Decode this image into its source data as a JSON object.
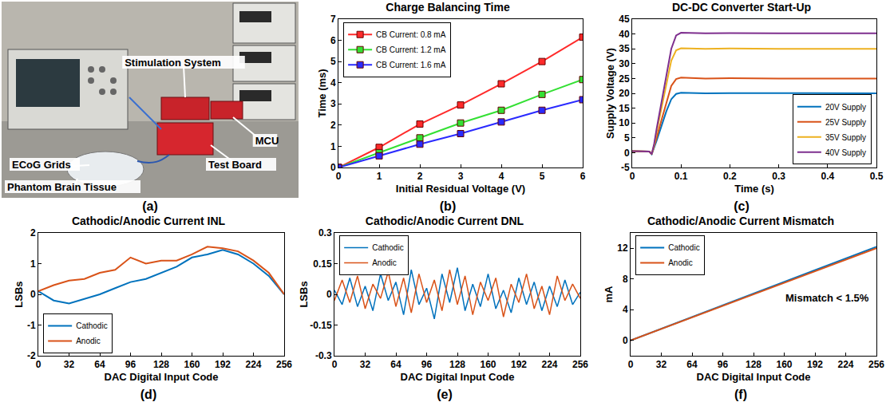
{
  "photo": {
    "label": "(a)",
    "annotations": [
      {
        "text": "Stimulation System"
      },
      {
        "text": "MCU"
      },
      {
        "text": "Test Board"
      },
      {
        "text": "ECoG Grids"
      },
      {
        "text": "Phantom Brain Tissue"
      }
    ]
  },
  "chart_data": [
    {
      "type": "line",
      "label": "(b)",
      "title": "Charge Balancing Time",
      "x_label": "Initial Residual Voltage (V)",
      "y_label": "Time (ms)",
      "x": [
        0,
        1,
        2,
        3,
        4,
        5,
        6
      ],
      "series": [
        {
          "name": "CB Current: 0.8 mA",
          "color": "#ff2a2a",
          "marker": "square",
          "values": [
            0,
            0.95,
            2.05,
            2.95,
            3.95,
            5.0,
            6.15
          ]
        },
        {
          "name": "CB Current: 1.2 mA",
          "color": "#33e033",
          "marker": "square",
          "values": [
            0,
            0.7,
            1.4,
            2.1,
            2.7,
            3.45,
            4.15
          ]
        },
        {
          "name": "CB Current: 1.6 mA",
          "color": "#2a2aff",
          "marker": "square",
          "values": [
            0,
            0.55,
            1.1,
            1.6,
            2.15,
            2.7,
            3.2
          ]
        }
      ],
      "xlim": [
        0,
        6
      ],
      "xticks": [
        0,
        1,
        2,
        3,
        4,
        5,
        6
      ],
      "ylim": [
        0,
        7
      ],
      "yticks": [
        0,
        1,
        2,
        3,
        4,
        5,
        6,
        7
      ],
      "grid": false,
      "legend": "upper left"
    },
    {
      "type": "line",
      "label": "(c)",
      "title": "DC-DC Converter Start-Up",
      "x_label": "Time (s)",
      "y_label": "Supply Voltage (V)",
      "x": [
        0,
        0.02,
        0.035,
        0.04,
        0.045,
        0.05,
        0.06,
        0.07,
        0.08,
        0.09,
        0.1,
        0.15,
        0.2,
        0.3,
        0.4,
        0.5
      ],
      "series": [
        {
          "name": "20V Supply",
          "color": "#0072bd",
          "values": [
            0.5,
            0.5,
            0.4,
            -0.5,
            1.5,
            4,
            9,
            14,
            18,
            19.8,
            20.2,
            20,
            20.1,
            20,
            20,
            20
          ]
        },
        {
          "name": "25V Supply",
          "color": "#d95319",
          "values": [
            0.5,
            0.5,
            0.4,
            -0.5,
            2,
            5,
            11,
            17,
            22.5,
            24.8,
            25.3,
            25,
            25.1,
            25,
            25,
            25
          ]
        },
        {
          "name": "35V Supply",
          "color": "#edb120",
          "values": [
            0.5,
            0.5,
            0.4,
            -0.5,
            2.5,
            7,
            15,
            24,
            31,
            34.5,
            35.2,
            35,
            35.1,
            35,
            35,
            35
          ]
        },
        {
          "name": "40V Supply",
          "color": "#7e2f8e",
          "values": [
            0.5,
            0.5,
            0.4,
            -0.5,
            3,
            8,
            17,
            27,
            35,
            39.5,
            40.4,
            40.2,
            40.3,
            40.2,
            40.2,
            40.2
          ]
        }
      ],
      "xlim": [
        0,
        0.5
      ],
      "xticks": [
        0,
        0.1,
        0.2,
        0.3,
        0.4,
        0.5
      ],
      "ylim": [
        -5,
        45
      ],
      "yticks": [
        -5,
        0,
        5,
        10,
        15,
        20,
        25,
        30,
        35,
        40,
        45
      ],
      "grid": false,
      "legend": "lower right"
    },
    {
      "type": "line",
      "label": "(d)",
      "title": "Cathodic/Anodic Current INL",
      "x_label": "DAC Digital Input Code",
      "y_label": "LSBs",
      "x": [
        0,
        16,
        32,
        48,
        64,
        80,
        96,
        112,
        128,
        144,
        160,
        176,
        192,
        208,
        224,
        240,
        256
      ],
      "series": [
        {
          "name": "Cathodic",
          "color": "#0072bd",
          "values": [
            0.1,
            -0.2,
            -0.3,
            -0.15,
            0,
            0.2,
            0.4,
            0.5,
            0.7,
            0.9,
            1.2,
            1.3,
            1.45,
            1.3,
            1.0,
            0.6,
            0.0
          ]
        },
        {
          "name": "Anodic",
          "color": "#d95319",
          "values": [
            0.1,
            0.3,
            0.45,
            0.5,
            0.7,
            0.8,
            1.2,
            1.0,
            1.1,
            1.1,
            1.3,
            1.55,
            1.5,
            1.4,
            1.1,
            0.7,
            0.0
          ]
        }
      ],
      "xlim": [
        0,
        256
      ],
      "xticks": [
        0,
        32,
        64,
        96,
        128,
        160,
        192,
        224,
        256
      ],
      "ylim": [
        -2,
        2
      ],
      "yticks": [
        -2,
        -1,
        0,
        1,
        2
      ],
      "grid": false,
      "legend": "lower left"
    },
    {
      "type": "line",
      "label": "(e)",
      "title": "Cathodic/Anodic Current DNL",
      "x_label": "DAC Digital Input Code",
      "y_label": "LSBs",
      "x": [
        0,
        8,
        16,
        24,
        32,
        40,
        48,
        56,
        64,
        72,
        80,
        88,
        96,
        104,
        112,
        120,
        128,
        136,
        144,
        152,
        160,
        168,
        176,
        184,
        192,
        200,
        208,
        216,
        224,
        232,
        240,
        248,
        256
      ],
      "series": [
        {
          "name": "Cathodic",
          "color": "#0072bd",
          "values": [
            0.02,
            -0.05,
            0.08,
            -0.06,
            0.04,
            -0.08,
            0.1,
            -0.03,
            0.06,
            -0.1,
            0.12,
            -0.05,
            0.03,
            -0.12,
            0.1,
            -0.04,
            0.13,
            -0.08,
            0.05,
            -0.06,
            0.1,
            -0.07,
            0.02,
            -0.09,
            0.08,
            -0.05,
            0.06,
            -0.08,
            0.04,
            -0.06,
            0.07,
            -0.05,
            0.01
          ]
        },
        {
          "name": "Anodic",
          "color": "#d95319",
          "values": [
            -0.03,
            0.07,
            -0.04,
            0.09,
            -0.07,
            0.05,
            -0.02,
            0.11,
            -0.06,
            0.08,
            -0.09,
            0.1,
            -0.04,
            0.07,
            -0.08,
            0.12,
            -0.05,
            0.09,
            -0.1,
            0.06,
            -0.03,
            0.08,
            -0.11,
            0.05,
            -0.04,
            0.1,
            -0.07,
            0.04,
            -0.1,
            0.09,
            -0.03,
            0.05,
            -0.02
          ]
        }
      ],
      "xlim": [
        0,
        256
      ],
      "xticks": [
        0,
        32,
        64,
        96,
        128,
        160,
        192,
        224,
        256
      ],
      "ylim": [
        -0.3,
        0.3
      ],
      "yticks": [
        -0.3,
        -0.15,
        0,
        0.15,
        0.3
      ],
      "grid": false,
      "legend": "upper left"
    },
    {
      "type": "line",
      "label": "(f)",
      "title": "Cathodic/Anodic Current Mismatch",
      "x_label": "DAC Digital Input Code",
      "y_label": "mA",
      "x": [
        0,
        64,
        128,
        192,
        256
      ],
      "series": [
        {
          "name": "Cathodic",
          "color": "#0072bd",
          "values": [
            0,
            3.05,
            6.1,
            9.15,
            12.2
          ]
        },
        {
          "name": "Anodic",
          "color": "#d95319",
          "values": [
            0,
            3.0,
            6.0,
            9.0,
            12.0
          ]
        }
      ],
      "annotations": [
        {
          "text": "Mismatch < 1.5%",
          "x": 205,
          "y": 5.5
        }
      ],
      "xlim": [
        0,
        256
      ],
      "xticks": [
        0,
        32,
        64,
        96,
        128,
        160,
        192,
        224,
        256
      ],
      "ylim": [
        -2,
        14
      ],
      "yticks": [
        0,
        4,
        8,
        12
      ],
      "grid": false,
      "legend": "upper left"
    }
  ]
}
